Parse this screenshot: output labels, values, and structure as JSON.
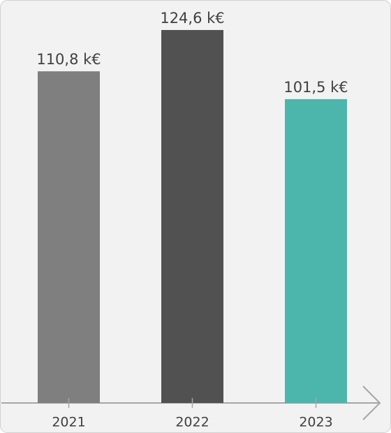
{
  "chart_data": {
    "type": "bar",
    "categories": [
      "2021",
      "2022",
      "2023"
    ],
    "values": [
      110.8,
      124.6,
      101.5
    ],
    "value_labels": [
      "110,8 k€",
      "124,6 k€",
      "101,5 k€"
    ],
    "colors": [
      "#7f7f7f",
      "#515151",
      "#4db6ac"
    ]
  }
}
